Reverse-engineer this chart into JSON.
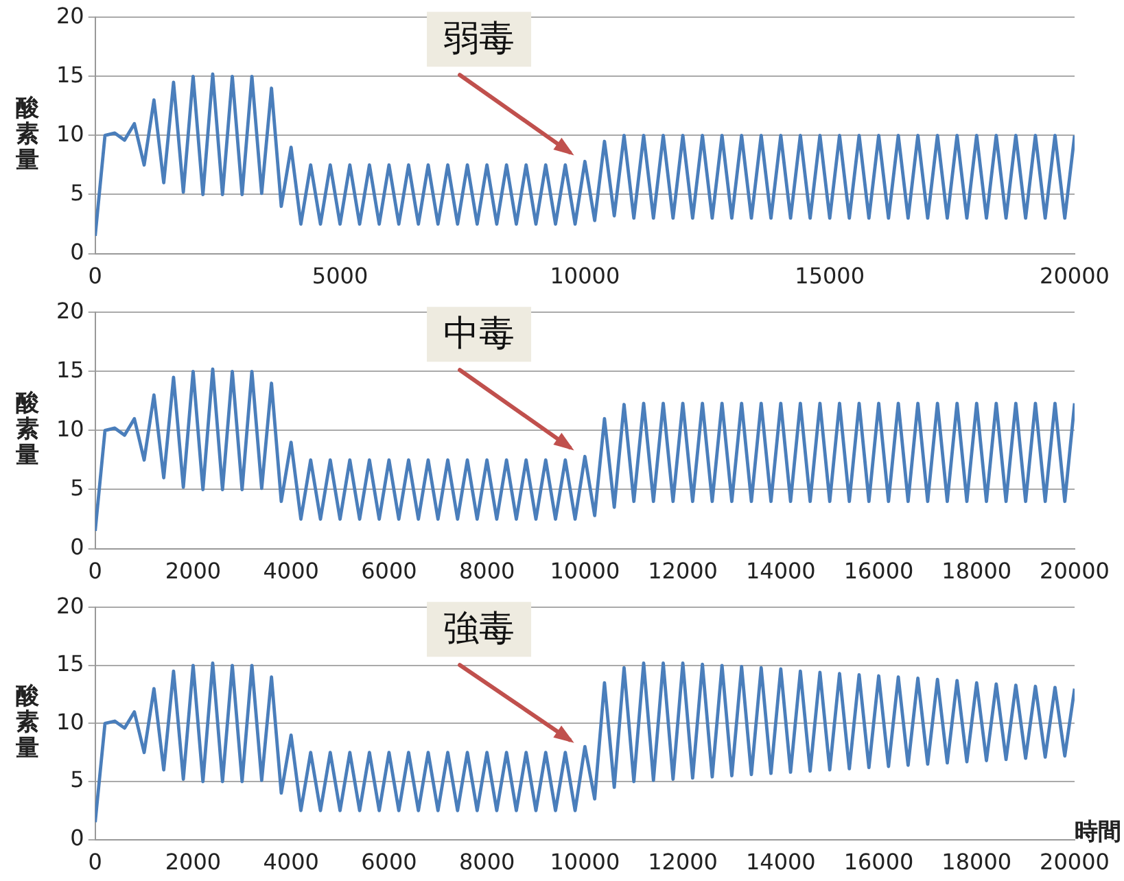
{
  "chart_data": [
    {
      "type": "line",
      "ylabel": "酸素量",
      "grid": "y",
      "xlim": [
        0,
        20000
      ],
      "xticks": [
        0,
        5000,
        10000,
        15000,
        20000
      ],
      "ylim": [
        0,
        20
      ],
      "yticks": [
        0,
        5,
        10,
        15,
        20
      ],
      "annotations": [
        "弱毒"
      ],
      "x": [
        0,
        200,
        400,
        600,
        800,
        1000,
        1200,
        1400,
        1600,
        1800,
        2000,
        2200,
        2400,
        2600,
        2800,
        3000,
        3200,
        3400,
        3600,
        3800,
        4000,
        4200,
        4400,
        4600,
        4800,
        5000,
        5200,
        5400,
        5600,
        5800,
        6000,
        6200,
        6400,
        6600,
        6800,
        7000,
        7200,
        7400,
        7600,
        7800,
        8000,
        8200,
        8400,
        8600,
        8800,
        9000,
        9200,
        9400,
        9600,
        9800,
        10000,
        10200,
        10400,
        10600,
        10800,
        11000,
        11200,
        11400,
        11600,
        11800,
        12000,
        12200,
        12400,
        12600,
        12800,
        13000,
        13200,
        13400,
        13600,
        13800,
        14000,
        14200,
        14400,
        14600,
        14800,
        15000,
        15200,
        15400,
        15600,
        15800,
        16000,
        16200,
        16400,
        16600,
        16800,
        17000,
        17200,
        17400,
        17600,
        17800,
        18000,
        18200,
        18400,
        18600,
        18800,
        19000,
        19200,
        19400,
        19600,
        19800,
        20000
      ],
      "series": [
        {
          "color": "#4a7ebb",
          "values": [
            1.5,
            10,
            10.2,
            9.6,
            11,
            7.5,
            13,
            6,
            14.5,
            5.2,
            15,
            5,
            15.2,
            5,
            15,
            5,
            15,
            5.1,
            14,
            4,
            9,
            2.5,
            7.5,
            2.5,
            7.5,
            2.5,
            7.5,
            2.5,
            7.5,
            2.5,
            7.5,
            2.5,
            7.5,
            2.5,
            7.5,
            2.5,
            7.5,
            2.5,
            7.5,
            2.5,
            7.5,
            2.5,
            7.5,
            2.5,
            7.5,
            2.5,
            7.5,
            2.5,
            7.5,
            2.5,
            7.8,
            2.8,
            9.5,
            3.2,
            10,
            3,
            10,
            3,
            10,
            3,
            10,
            3,
            10,
            3,
            10,
            3,
            10,
            3,
            10,
            3,
            10,
            3,
            10,
            3,
            10,
            3,
            10,
            3,
            10,
            3,
            10,
            3,
            10,
            3,
            10,
            3,
            10,
            3,
            10,
            3,
            10,
            3,
            10,
            3,
            10,
            3,
            10,
            3,
            10,
            3,
            10
          ]
        }
      ]
    },
    {
      "type": "line",
      "ylabel": "酸素量",
      "grid": "y",
      "xlim": [
        0,
        20000
      ],
      "xticks": [
        0,
        2000,
        4000,
        6000,
        8000,
        10000,
        12000,
        14000,
        16000,
        18000,
        20000
      ],
      "ylim": [
        0,
        20
      ],
      "yticks": [
        0,
        5,
        10,
        15,
        20
      ],
      "annotations": [
        "中毒"
      ],
      "x": [
        0,
        200,
        400,
        600,
        800,
        1000,
        1200,
        1400,
        1600,
        1800,
        2000,
        2200,
        2400,
        2600,
        2800,
        3000,
        3200,
        3400,
        3600,
        3800,
        4000,
        4200,
        4400,
        4600,
        4800,
        5000,
        5200,
        5400,
        5600,
        5800,
        6000,
        6200,
        6400,
        6600,
        6800,
        7000,
        7200,
        7400,
        7600,
        7800,
        8000,
        8200,
        8400,
        8600,
        8800,
        9000,
        9200,
        9400,
        9600,
        9800,
        10000,
        10200,
        10400,
        10600,
        10800,
        11000,
        11200,
        11400,
        11600,
        11800,
        12000,
        12200,
        12400,
        12600,
        12800,
        13000,
        13200,
        13400,
        13600,
        13800,
        14000,
        14200,
        14400,
        14600,
        14800,
        15000,
        15200,
        15400,
        15600,
        15800,
        16000,
        16200,
        16400,
        16600,
        16800,
        17000,
        17200,
        17400,
        17600,
        17800,
        18000,
        18200,
        18400,
        18600,
        18800,
        19000,
        19200,
        19400,
        19600,
        19800,
        20000
      ],
      "series": [
        {
          "color": "#4a7ebb",
          "values": [
            1.5,
            10,
            10.2,
            9.6,
            11,
            7.5,
            13,
            6,
            14.5,
            5.2,
            15,
            5,
            15.2,
            5,
            15,
            5,
            15,
            5.1,
            14,
            4,
            9,
            2.5,
            7.5,
            2.5,
            7.5,
            2.5,
            7.5,
            2.5,
            7.5,
            2.5,
            7.5,
            2.5,
            7.5,
            2.5,
            7.5,
            2.5,
            7.5,
            2.5,
            7.5,
            2.5,
            7.5,
            2.5,
            7.5,
            2.5,
            7.5,
            2.5,
            7.5,
            2.5,
            7.5,
            2.5,
            7.8,
            2.8,
            11,
            3.5,
            12.2,
            4,
            12.3,
            4,
            12.3,
            4,
            12.3,
            4,
            12.3,
            4,
            12.3,
            4,
            12.3,
            4,
            12.3,
            4,
            12.3,
            4,
            12.3,
            4,
            12.3,
            4,
            12.3,
            4,
            12.3,
            4,
            12.3,
            4,
            12.3,
            4,
            12.3,
            4,
            12.3,
            4,
            12.3,
            4,
            12.3,
            4,
            12.3,
            4,
            12.3,
            4,
            12.3,
            4,
            12.3,
            4,
            12.3
          ]
        }
      ]
    },
    {
      "type": "line",
      "ylabel": "酸素量",
      "xlabel": "時間",
      "grid": "y",
      "xlim": [
        0,
        20000
      ],
      "xticks": [
        0,
        2000,
        4000,
        6000,
        8000,
        10000,
        12000,
        14000,
        16000,
        18000,
        20000
      ],
      "ylim": [
        0,
        20
      ],
      "yticks": [
        0,
        5,
        10,
        15,
        20
      ],
      "annotations": [
        "強毒"
      ],
      "x": [
        0,
        200,
        400,
        600,
        800,
        1000,
        1200,
        1400,
        1600,
        1800,
        2000,
        2200,
        2400,
        2600,
        2800,
        3000,
        3200,
        3400,
        3600,
        3800,
        4000,
        4200,
        4400,
        4600,
        4800,
        5000,
        5200,
        5400,
        5600,
        5800,
        6000,
        6200,
        6400,
        6600,
        6800,
        7000,
        7200,
        7400,
        7600,
        7800,
        8000,
        8200,
        8400,
        8600,
        8800,
        9000,
        9200,
        9400,
        9600,
        9800,
        10000,
        10200,
        10400,
        10600,
        10800,
        11000,
        11200,
        11400,
        11600,
        11800,
        12000,
        12200,
        12400,
        12600,
        12800,
        13000,
        13200,
        13400,
        13600,
        13800,
        14000,
        14200,
        14400,
        14600,
        14800,
        15000,
        15200,
        15400,
        15600,
        15800,
        16000,
        16200,
        16400,
        16600,
        16800,
        17000,
        17200,
        17400,
        17600,
        17800,
        18000,
        18200,
        18400,
        18600,
        18800,
        19000,
        19200,
        19400,
        19600,
        19800,
        20000
      ],
      "series": [
        {
          "color": "#4a7ebb",
          "values": [
            1.5,
            10,
            10.2,
            9.6,
            11,
            7.5,
            13,
            6,
            14.5,
            5.2,
            15,
            5,
            15.2,
            5,
            15,
            5,
            15,
            5.1,
            14,
            4,
            9,
            2.5,
            7.5,
            2.5,
            7.5,
            2.5,
            7.5,
            2.5,
            7.5,
            2.5,
            7.5,
            2.5,
            7.5,
            2.5,
            7.5,
            2.5,
            7.5,
            2.5,
            7.5,
            2.5,
            7.5,
            2.5,
            7.5,
            2.5,
            7.5,
            2.5,
            7.5,
            2.5,
            7.5,
            2.5,
            8,
            3.5,
            13.5,
            4.5,
            14.8,
            5,
            15.2,
            5.1,
            15.2,
            5.2,
            15.2,
            5.3,
            15.1,
            5.4,
            15.0,
            5.5,
            14.9,
            5.6,
            14.8,
            5.7,
            14.7,
            5.8,
            14.5,
            5.9,
            14.4,
            6.0,
            14.3,
            6.1,
            14.2,
            6.2,
            14.1,
            6.3,
            14.0,
            6.4,
            13.9,
            6.5,
            13.8,
            6.6,
            13.7,
            6.7,
            13.5,
            6.8,
            13.4,
            6.9,
            13.3,
            7.0,
            13.2,
            7.1,
            13.1,
            7.2,
            13.0
          ]
        }
      ]
    }
  ]
}
